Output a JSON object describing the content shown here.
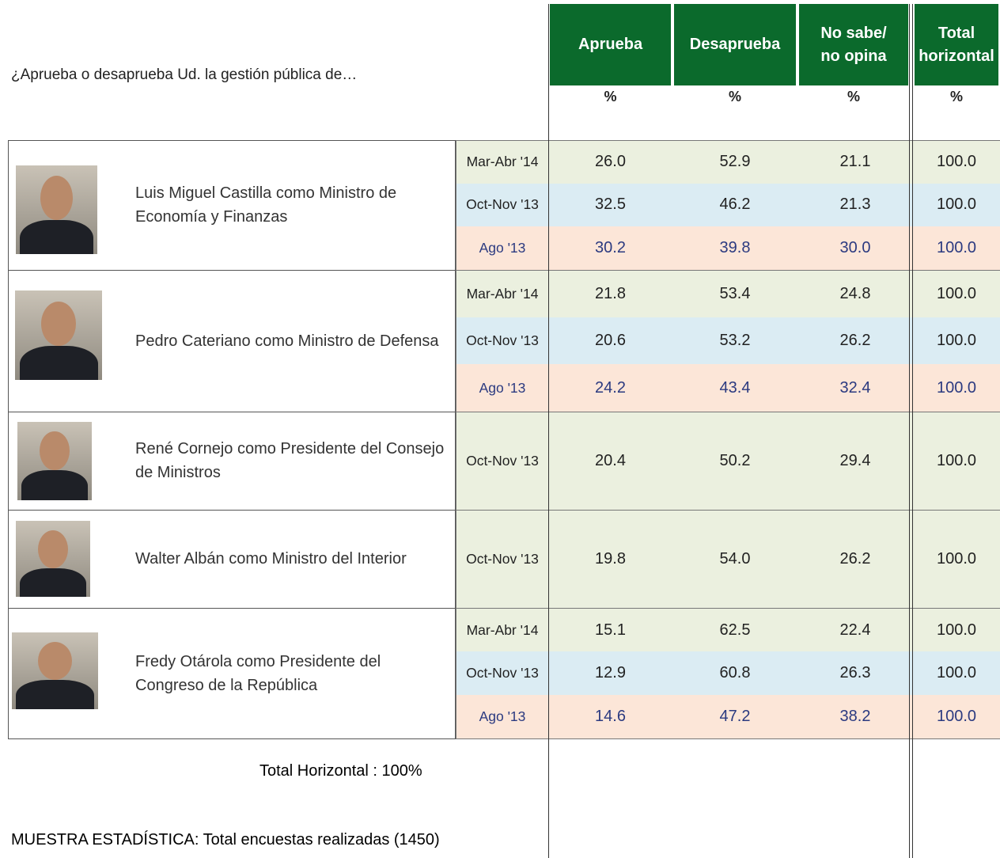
{
  "question": "¿Aprueba o desaprueba Ud. la gestión pública de…",
  "columns": [
    {
      "label": "Aprueba",
      "unit": "%"
    },
    {
      "label": "Desaprueba",
      "unit": "%"
    },
    {
      "label": "No sabe/\nno opina",
      "unit": "%"
    },
    {
      "label": "Total\nhorizontal",
      "unit": "%"
    }
  ],
  "groups": [
    {
      "name": "Luis Miguel Castilla como Ministro de Economía y Finanzas",
      "rows": [
        {
          "period": "Mar-Abr '14",
          "values": [
            "26.0",
            "52.9",
            "21.1",
            "100.0"
          ]
        },
        {
          "period": "Oct-Nov '13",
          "values": [
            "32.5",
            "46.2",
            "21.3",
            "100.0"
          ]
        },
        {
          "period": "Ago '13",
          "values": [
            "30.2",
            "39.8",
            "30.0",
            "100.0"
          ]
        }
      ]
    },
    {
      "name": "Pedro Cateriano como Ministro de Defensa",
      "rows": [
        {
          "period": "Mar-Abr '14",
          "values": [
            "21.8",
            "53.4",
            "24.8",
            "100.0"
          ]
        },
        {
          "period": "Oct-Nov '13",
          "values": [
            "20.6",
            "53.2",
            "26.2",
            "100.0"
          ]
        },
        {
          "period": "Ago '13",
          "values": [
            "24.2",
            "43.4",
            "32.4",
            "100.0"
          ]
        }
      ]
    },
    {
      "name": "René Cornejo como Presidente del Consejo de Ministros",
      "rows": [
        {
          "period": "Oct-Nov '13",
          "values": [
            "20.4",
            "50.2",
            "29.4",
            "100.0"
          ]
        }
      ]
    },
    {
      "name": "Walter Albán como Ministro del Interior",
      "rows": [
        {
          "period": "Oct-Nov '13",
          "values": [
            "19.8",
            "54.0",
            "26.2",
            "100.0"
          ]
        }
      ]
    },
    {
      "name": "Fredy Otárola como Presidente del Congreso de la República",
      "rows": [
        {
          "period": "Mar-Abr '14",
          "values": [
            "15.1",
            "62.5",
            "22.4",
            "100.0"
          ]
        },
        {
          "period": "Oct-Nov '13",
          "values": [
            "12.9",
            "60.8",
            "26.3",
            "100.0"
          ]
        },
        {
          "period": "Ago '13",
          "values": [
            "14.6",
            "47.2",
            "38.2",
            "100.0"
          ]
        }
      ]
    }
  ],
  "footer": {
    "note": "Total Horizontal : 100%",
    "sample": "MUESTRA ESTADÍSTICA: Total encuestas realizadas (1450)"
  }
}
